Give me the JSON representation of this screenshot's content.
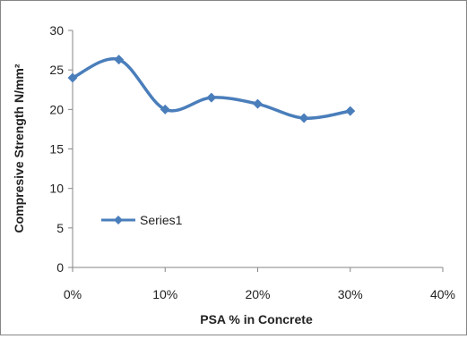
{
  "chart_data": {
    "type": "line",
    "x": [
      "0%",
      "5%",
      "10%",
      "15%",
      "20%",
      "25%",
      "30%"
    ],
    "x_values": [
      0,
      5,
      10,
      15,
      20,
      25,
      30
    ],
    "series": [
      {
        "name": "Series1",
        "values": [
          24.0,
          26.3,
          20.0,
          21.5,
          20.7,
          18.9,
          19.8
        ],
        "color": "#4a7ebb"
      }
    ],
    "xlabel": "PSA % in Concrete",
    "ylabel": "Compresive Strength N/mm²",
    "xlim": [
      0,
      40
    ],
    "ylim": [
      0,
      30
    ],
    "x_ticks": [
      "0%",
      "10%",
      "20%",
      "30%",
      "40%"
    ],
    "y_ticks": [
      "0",
      "5",
      "10",
      "15",
      "20",
      "25",
      "30"
    ],
    "grid": false,
    "legend_position": "center-left",
    "line_style": "smoothed with diamond markers"
  }
}
